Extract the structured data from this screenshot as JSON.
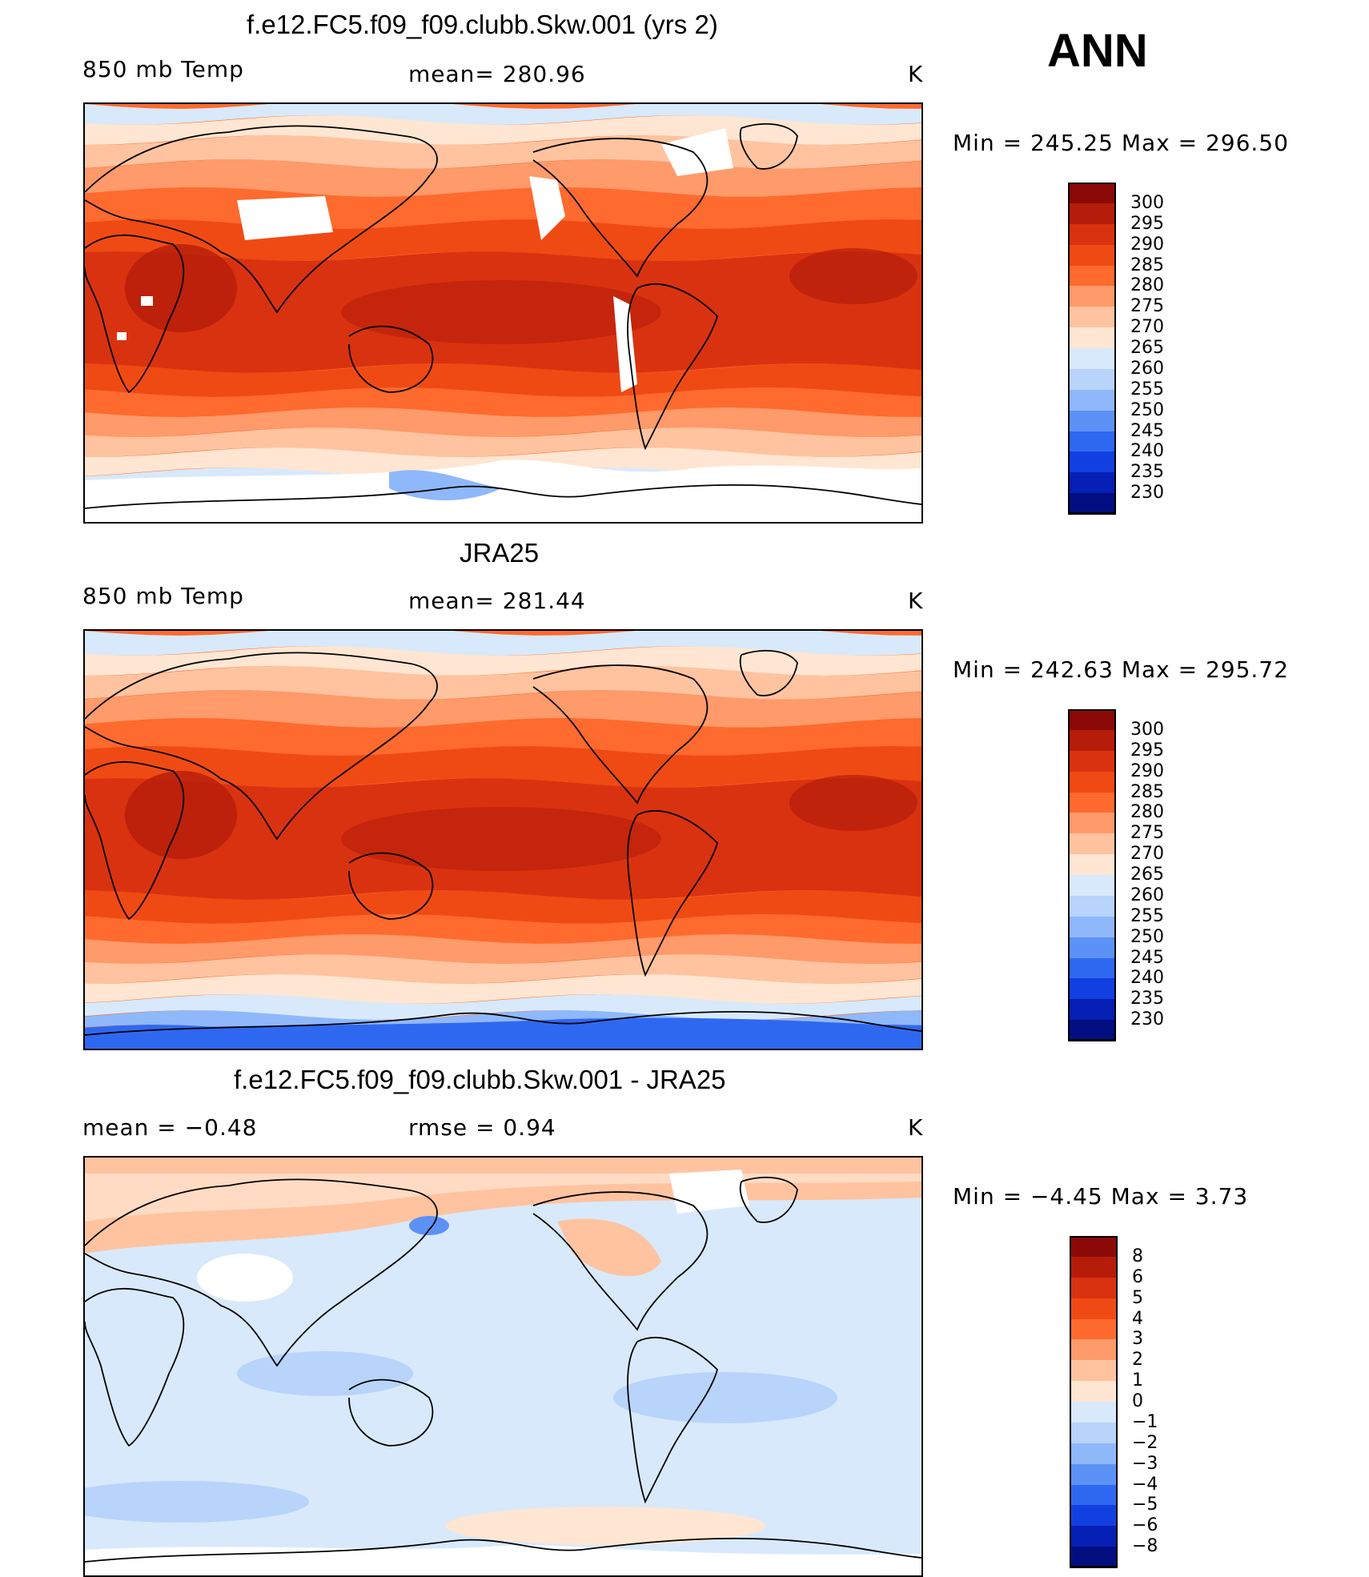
{
  "season": "ANN",
  "panels": [
    {
      "title": "f.e12.FC5.f09_f09.clubb.Skw.001 (yrs 2)",
      "left": "850 mb Temp",
      "center": "mean= 280.96",
      "units": "K",
      "minmax": "Min = 245.25 Max = 296.50",
      "colorbar_labels": [
        "300",
        "295",
        "290",
        "285",
        "280",
        "275",
        "270",
        "265",
        "260",
        "255",
        "250",
        "245",
        "240",
        "235",
        "230"
      ],
      "colorbar_colors": [
        "#8b0a08",
        "#b51c0a",
        "#d93210",
        "#f04a14",
        "#ff6a2e",
        "#ff9a6a",
        "#ffc3a0",
        "#ffe6d2",
        "#d8e9fb",
        "#b8d4fb",
        "#8fb8fb",
        "#5c92f6",
        "#2f68f0",
        "#123fe0",
        "#061fb4",
        "#020e80"
      ],
      "map_type": "model"
    },
    {
      "title": "JRA25",
      "left": "850 mb Temp",
      "center": "mean= 281.44",
      "units": "K",
      "minmax": "Min = 242.63 Max = 295.72",
      "colorbar_labels": [
        "300",
        "295",
        "290",
        "285",
        "280",
        "275",
        "270",
        "265",
        "260",
        "255",
        "250",
        "245",
        "240",
        "235",
        "230"
      ],
      "colorbar_colors": [
        "#8b0a08",
        "#b51c0a",
        "#d93210",
        "#f04a14",
        "#ff6a2e",
        "#ff9a6a",
        "#ffc3a0",
        "#ffe6d2",
        "#d8e9fb",
        "#b8d4fb",
        "#8fb8fb",
        "#5c92f6",
        "#2f68f0",
        "#123fe0",
        "#061fb4",
        "#020e80"
      ],
      "map_type": "obs"
    },
    {
      "title": "f.e12.FC5.f09_f09.clubb.Skw.001 - JRA25",
      "left": "mean =  −0.48",
      "center": "rmse =   0.94",
      "units": "K",
      "minmax": "Min =  −4.45 Max =   3.73",
      "colorbar_labels": [
        "8",
        "6",
        "5",
        "4",
        "3",
        "2",
        "1",
        "0",
        "−1",
        "−2",
        "−3",
        "−4",
        "−5",
        "−6",
        "−8"
      ],
      "colorbar_colors": [
        "#8b0a08",
        "#b51c0a",
        "#d93210",
        "#f04a14",
        "#ff6a2e",
        "#ff9a6a",
        "#ffc3a0",
        "#ffe6d2",
        "#d8e9fb",
        "#b8d4fb",
        "#8fb8fb",
        "#5c92f6",
        "#2f68f0",
        "#123fe0",
        "#061fb4",
        "#020e80"
      ],
      "map_type": "diff"
    }
  ]
}
